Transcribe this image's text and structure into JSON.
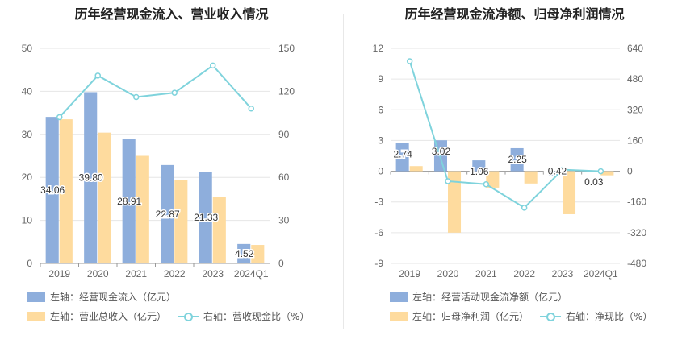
{
  "colors": {
    "bar1": "#8eaedc",
    "bar2": "#fedb9e",
    "line": "#7fd3dc",
    "grid": "#e6e6e6",
    "axis_text": "#666666"
  },
  "chart_data": [
    {
      "type": "bar",
      "title": "历年经营现金流入、营业收入情况",
      "categories": [
        "2019",
        "2020",
        "2021",
        "2022",
        "2023",
        "2024Q1"
      ],
      "left_axis": {
        "ticks": [
          "0",
          "10",
          "20",
          "30",
          "40",
          "50"
        ],
        "ylim": [
          0,
          50
        ]
      },
      "right_axis": {
        "ticks": [
          "0",
          "30",
          "60",
          "90",
          "120",
          "150"
        ],
        "ylim": [
          0,
          150
        ]
      },
      "series": [
        {
          "name": "左轴：经营现金流入（亿元）",
          "axis": "left",
          "kind": "bar",
          "values": [
            34.06,
            39.8,
            28.91,
            22.87,
            21.33,
            4.52
          ],
          "labels": [
            "34.06",
            "39.80",
            "28.91",
            "22.87",
            "21.33",
            "4.52"
          ]
        },
        {
          "name": "左轴：营业总收入（亿元）",
          "axis": "left",
          "kind": "bar",
          "values": [
            33.5,
            30.4,
            25.0,
            19.3,
            15.5,
            4.3
          ]
        },
        {
          "name": "右轴：营收现金比（%）",
          "axis": "right",
          "kind": "line",
          "values": [
            102,
            131,
            116,
            119,
            138,
            108
          ]
        }
      ],
      "grid": true,
      "legend_position": "bottom-left"
    },
    {
      "type": "bar",
      "title": "历年经营现金流净额、归母净利润情况",
      "categories": [
        "2019",
        "2020",
        "2021",
        "2022",
        "2023",
        "2024Q1"
      ],
      "left_axis": {
        "ticks": [
          "-9",
          "-6",
          "-3",
          "0",
          "3",
          "6",
          "9",
          "12"
        ],
        "ylim": [
          -9,
          12
        ]
      },
      "right_axis": {
        "ticks": [
          "-480",
          "-320",
          "-160",
          "0",
          "160",
          "320",
          "480",
          "640"
        ],
        "ylim": [
          -480,
          640
        ]
      },
      "series": [
        {
          "name": "左轴：经营活动现金流净额（亿元）",
          "axis": "left",
          "kind": "bar",
          "values": [
            2.74,
            3.02,
            1.06,
            2.25,
            -0.42,
            0.03
          ],
          "labels": [
            "2.74",
            "3.02",
            "1.06",
            "2.25",
            "-0.42",
            "0.03"
          ]
        },
        {
          "name": "左轴：归母净利润（亿元）",
          "axis": "left",
          "kind": "bar",
          "values": [
            0.5,
            -6.0,
            -1.6,
            -1.2,
            -4.2,
            -0.4
          ]
        },
        {
          "name": "右轴：净现比（%）",
          "axis": "right",
          "kind": "line",
          "values": [
            573,
            -52,
            -68,
            -190,
            8,
            0
          ]
        }
      ],
      "grid": true,
      "legend_position": "bottom-left"
    }
  ]
}
